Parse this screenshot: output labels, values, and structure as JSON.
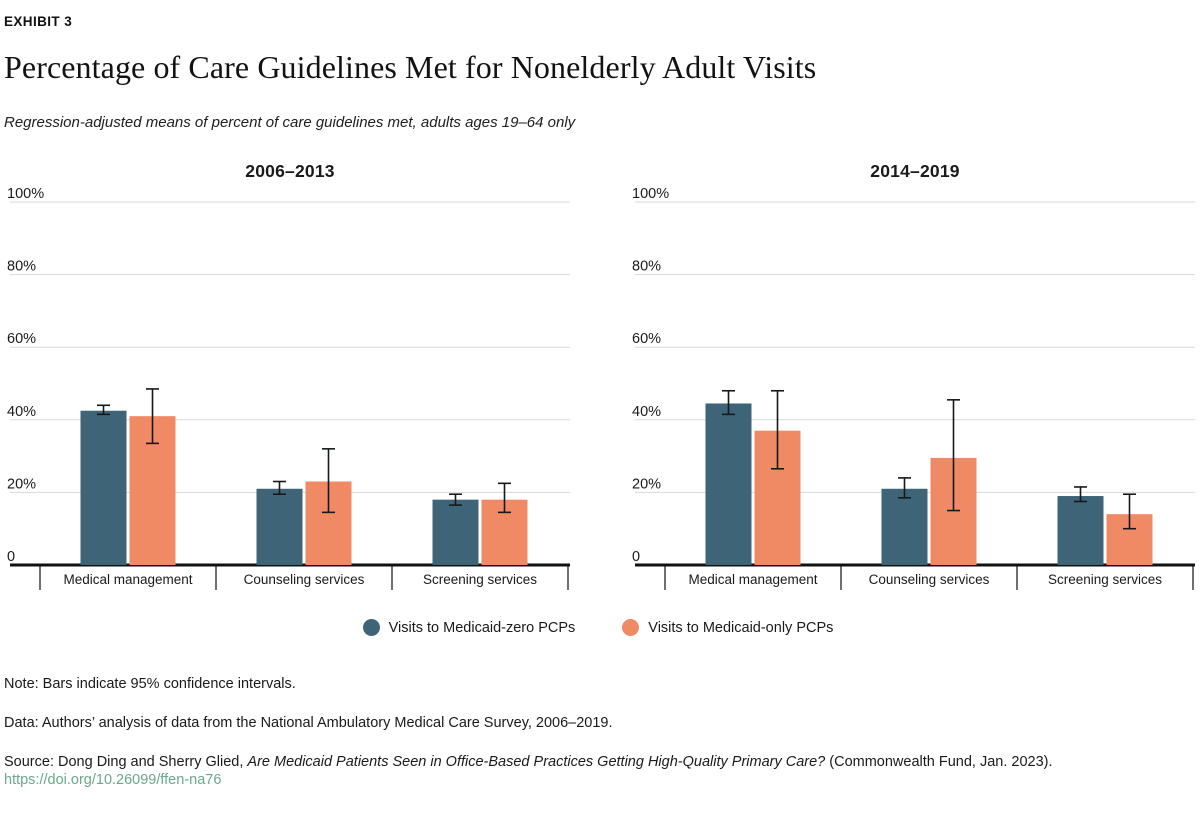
{
  "header": {
    "eyebrow": "EXHIBIT 3",
    "title": "Percentage of Care Guidelines Met for Nonelderly Adult Visits",
    "subtitle": "Regression-adjusted means of percent of care guidelines met, adults ages 19–64 only"
  },
  "colors": {
    "medicaid_zero": "#3e6577",
    "medicaid_only": "#f08a64",
    "gridline": "#d9d9d9",
    "axis": "#111111",
    "error_bar": "#15191c",
    "text": "#1a1a1a",
    "link": "#6aa98c"
  },
  "legend": {
    "items": [
      {
        "label": "Visits to Medicaid-zero PCPs",
        "color_key": "medicaid_zero"
      },
      {
        "label": "Visits to Medicaid-only PCPs",
        "color_key": "medicaid_only"
      }
    ]
  },
  "chart_data": [
    {
      "type": "bar",
      "title": "2006–2013",
      "categories": [
        "Medical management",
        "Counseling services",
        "Screening services"
      ],
      "ylim": [
        0,
        100
      ],
      "grid": true,
      "y_ticks": [
        {
          "value": 100,
          "label": "100%"
        },
        {
          "value": 80,
          "label": "80%"
        },
        {
          "value": 60,
          "label": "60%"
        },
        {
          "value": 40,
          "label": "40%"
        },
        {
          "value": 20,
          "label": "20%"
        },
        {
          "value": 0,
          "label": "0"
        }
      ],
      "series": [
        {
          "name": "Visits to Medicaid-zero PCPs",
          "values": [
            42.5,
            21,
            18
          ],
          "ci_low": [
            41.5,
            19.5,
            16.5
          ],
          "ci_high": [
            44,
            23,
            19.5
          ]
        },
        {
          "name": "Visits to Medicaid-only PCPs",
          "values": [
            41,
            23,
            18
          ],
          "ci_low": [
            33.5,
            14.5,
            14.5
          ],
          "ci_high": [
            48.5,
            32,
            22.5
          ]
        }
      ],
      "note": "Error bars show 95% confidence intervals"
    },
    {
      "type": "bar",
      "title": "2014–2019",
      "categories": [
        "Medical management",
        "Counseling services",
        "Screening services"
      ],
      "ylim": [
        0,
        100
      ],
      "grid": true,
      "y_ticks": [
        {
          "value": 100,
          "label": "100%"
        },
        {
          "value": 80,
          "label": "80%"
        },
        {
          "value": 60,
          "label": "60%"
        },
        {
          "value": 40,
          "label": "40%"
        },
        {
          "value": 20,
          "label": "20%"
        },
        {
          "value": 0,
          "label": "0"
        }
      ],
      "series": [
        {
          "name": "Visits to Medicaid-zero PCPs",
          "values": [
            44.5,
            21,
            19
          ],
          "ci_low": [
            41.5,
            18.5,
            17.5
          ],
          "ci_high": [
            48,
            24,
            21.5
          ]
        },
        {
          "name": "Visits to Medicaid-only PCPs",
          "values": [
            37,
            29.5,
            14
          ],
          "ci_low": [
            26.5,
            15,
            10
          ],
          "ci_high": [
            48,
            45.5,
            19.5
          ]
        }
      ],
      "note": "Error bars show 95% confidence intervals"
    }
  ],
  "footnotes": {
    "note": "Note: Bars indicate 95% confidence intervals.",
    "data": "Data: Authors’ analysis of data from the National Ambulatory Medical Care Survey, 2006–2019.",
    "source_prefix": "Source: Dong Ding and Sherry Glied, ",
    "source_title": "Are Medicaid Patients Seen in Office-Based Practices Getting High-Quality Primary Care?",
    "source_suffix": " (Commonwealth Fund, Jan. 2023).",
    "link": "https://doi.org/10.26099/ffen-na76"
  }
}
